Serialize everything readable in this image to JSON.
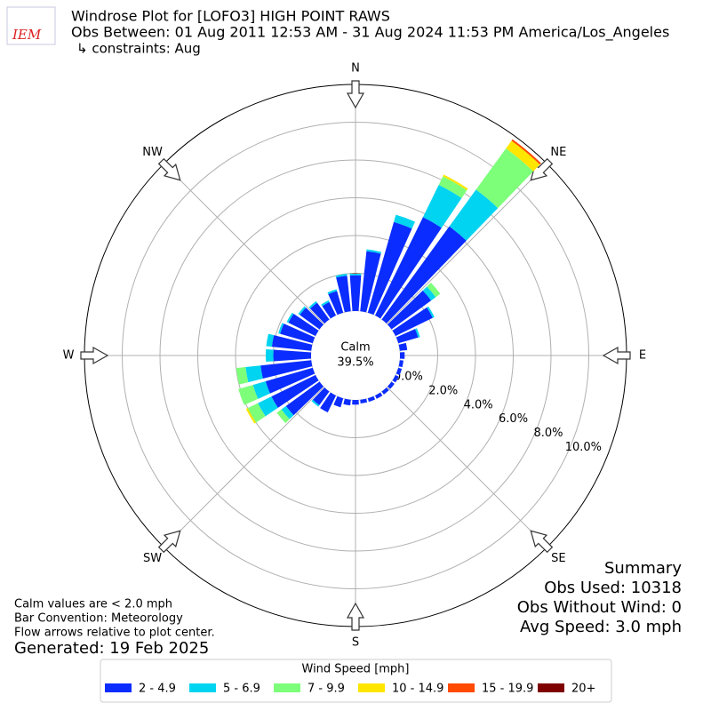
{
  "chart_data": {
    "type": "windrose",
    "logo_text": "IEM",
    "title": "Windrose Plot for [LOFO3] HIGH POINT RAWS",
    "subtitle": "Obs Between: 01 Aug 2011 12:53 AM - 31 Aug 2024 11:53 PM America/Los_Angeles",
    "constraints": "↳ constraints: Aug",
    "compass": [
      "N",
      "NE",
      "E",
      "SE",
      "S",
      "SW",
      "W",
      "NW"
    ],
    "calm_label": "Calm",
    "calm": {
      "value": 39.5,
      "label": "39.5%"
    },
    "x": [
      0,
      10,
      20,
      30,
      40,
      50,
      60,
      70,
      80,
      90,
      100,
      110,
      120,
      130,
      140,
      150,
      160,
      170,
      180,
      190,
      200,
      210,
      220,
      230,
      240,
      250,
      260,
      270,
      280,
      290,
      300,
      310,
      320,
      330,
      340,
      350
    ],
    "ylim": [
      0,
      12
    ],
    "yticks": [
      {
        "value": 0,
        "label": "0.0%"
      },
      {
        "value": 2,
        "label": "2.0%"
      },
      {
        "value": 4,
        "label": "4.0%"
      },
      {
        "value": 6,
        "label": "6.0%"
      },
      {
        "value": 8,
        "label": "8.0%"
      },
      {
        "value": 10,
        "label": "10.0%"
      }
    ],
    "grid": true,
    "legend_title": "Wind Speed [mph]",
    "series": [
      {
        "name": "2 - 4.9",
        "color": "#0a2cff",
        "values": [
          1.9,
          3.2,
          5.0,
          5.8,
          6.1,
          2.6,
          2.2,
          1.1,
          0.4,
          0.25,
          0.2,
          0.2,
          0.2,
          0.2,
          0.2,
          0.2,
          0.2,
          0.2,
          0.25,
          0.3,
          0.5,
          1.0,
          0.9,
          2.2,
          2.6,
          2.6,
          2.7,
          2.0,
          2.1,
          1.8,
          1.6,
          1.3,
          1.1,
          0.8,
          1.2,
          1.9
        ]
      },
      {
        "name": "5 - 6.9",
        "color": "#00d4f0",
        "values": [
          0.1,
          0.1,
          0.4,
          1.9,
          2.4,
          0.3,
          0.1,
          0.1,
          0,
          0,
          0,
          0,
          0,
          0,
          0,
          0,
          0,
          0,
          0,
          0,
          0,
          0,
          0.1,
          0.3,
          0.8,
          0.7,
          0.8,
          0.4,
          0.3,
          0.1,
          0.1,
          0.1,
          0.1,
          0.1,
          0.1,
          0.1
        ]
      },
      {
        "name": "7 - 9.9",
        "color": "#7dff7a",
        "values": [
          0,
          0,
          0,
          0.5,
          2.7,
          0.3,
          0,
          0,
          0,
          0,
          0,
          0,
          0,
          0,
          0,
          0,
          0,
          0,
          0,
          0,
          0,
          0,
          0,
          0.3,
          0.6,
          0.8,
          0.5,
          0,
          0,
          0,
          0,
          0,
          0,
          0,
          0,
          0
        ]
      },
      {
        "name": "10 - 14.9",
        "color": "#ffe600",
        "values": [
          0,
          0,
          0,
          0.1,
          0.5,
          0,
          0,
          0,
          0,
          0,
          0,
          0,
          0,
          0,
          0,
          0,
          0,
          0,
          0,
          0,
          0,
          0,
          0,
          0,
          0.1,
          0,
          0,
          0,
          0,
          0,
          0,
          0,
          0,
          0,
          0,
          0
        ]
      },
      {
        "name": "15 - 19.9",
        "color": "#ff4a00",
        "values": [
          0,
          0,
          0,
          0,
          0.1,
          0,
          0,
          0,
          0,
          0,
          0,
          0,
          0,
          0,
          0,
          0,
          0,
          0,
          0,
          0,
          0,
          0,
          0,
          0,
          0,
          0,
          0,
          0,
          0,
          0,
          0,
          0,
          0,
          0,
          0,
          0
        ]
      },
      {
        "name": "20+",
        "color": "#7f0000",
        "values": [
          0,
          0,
          0,
          0,
          0,
          0,
          0,
          0,
          0,
          0,
          0,
          0,
          0,
          0,
          0,
          0,
          0,
          0,
          0,
          0,
          0,
          0,
          0,
          0,
          0,
          0,
          0,
          0,
          0,
          0,
          0,
          0,
          0,
          0,
          0,
          0
        ]
      }
    ],
    "summary": [
      "Summary",
      "Obs Used: 10318",
      "Obs Without Wind: 0",
      "Avg Speed: 3.0 mph"
    ],
    "notes": [
      "Calm values are < 2.0 mph",
      "Bar Convention: Meteorology",
      "Flow arrows relative to plot center."
    ],
    "generated": "Generated: 19 Feb 2025"
  }
}
